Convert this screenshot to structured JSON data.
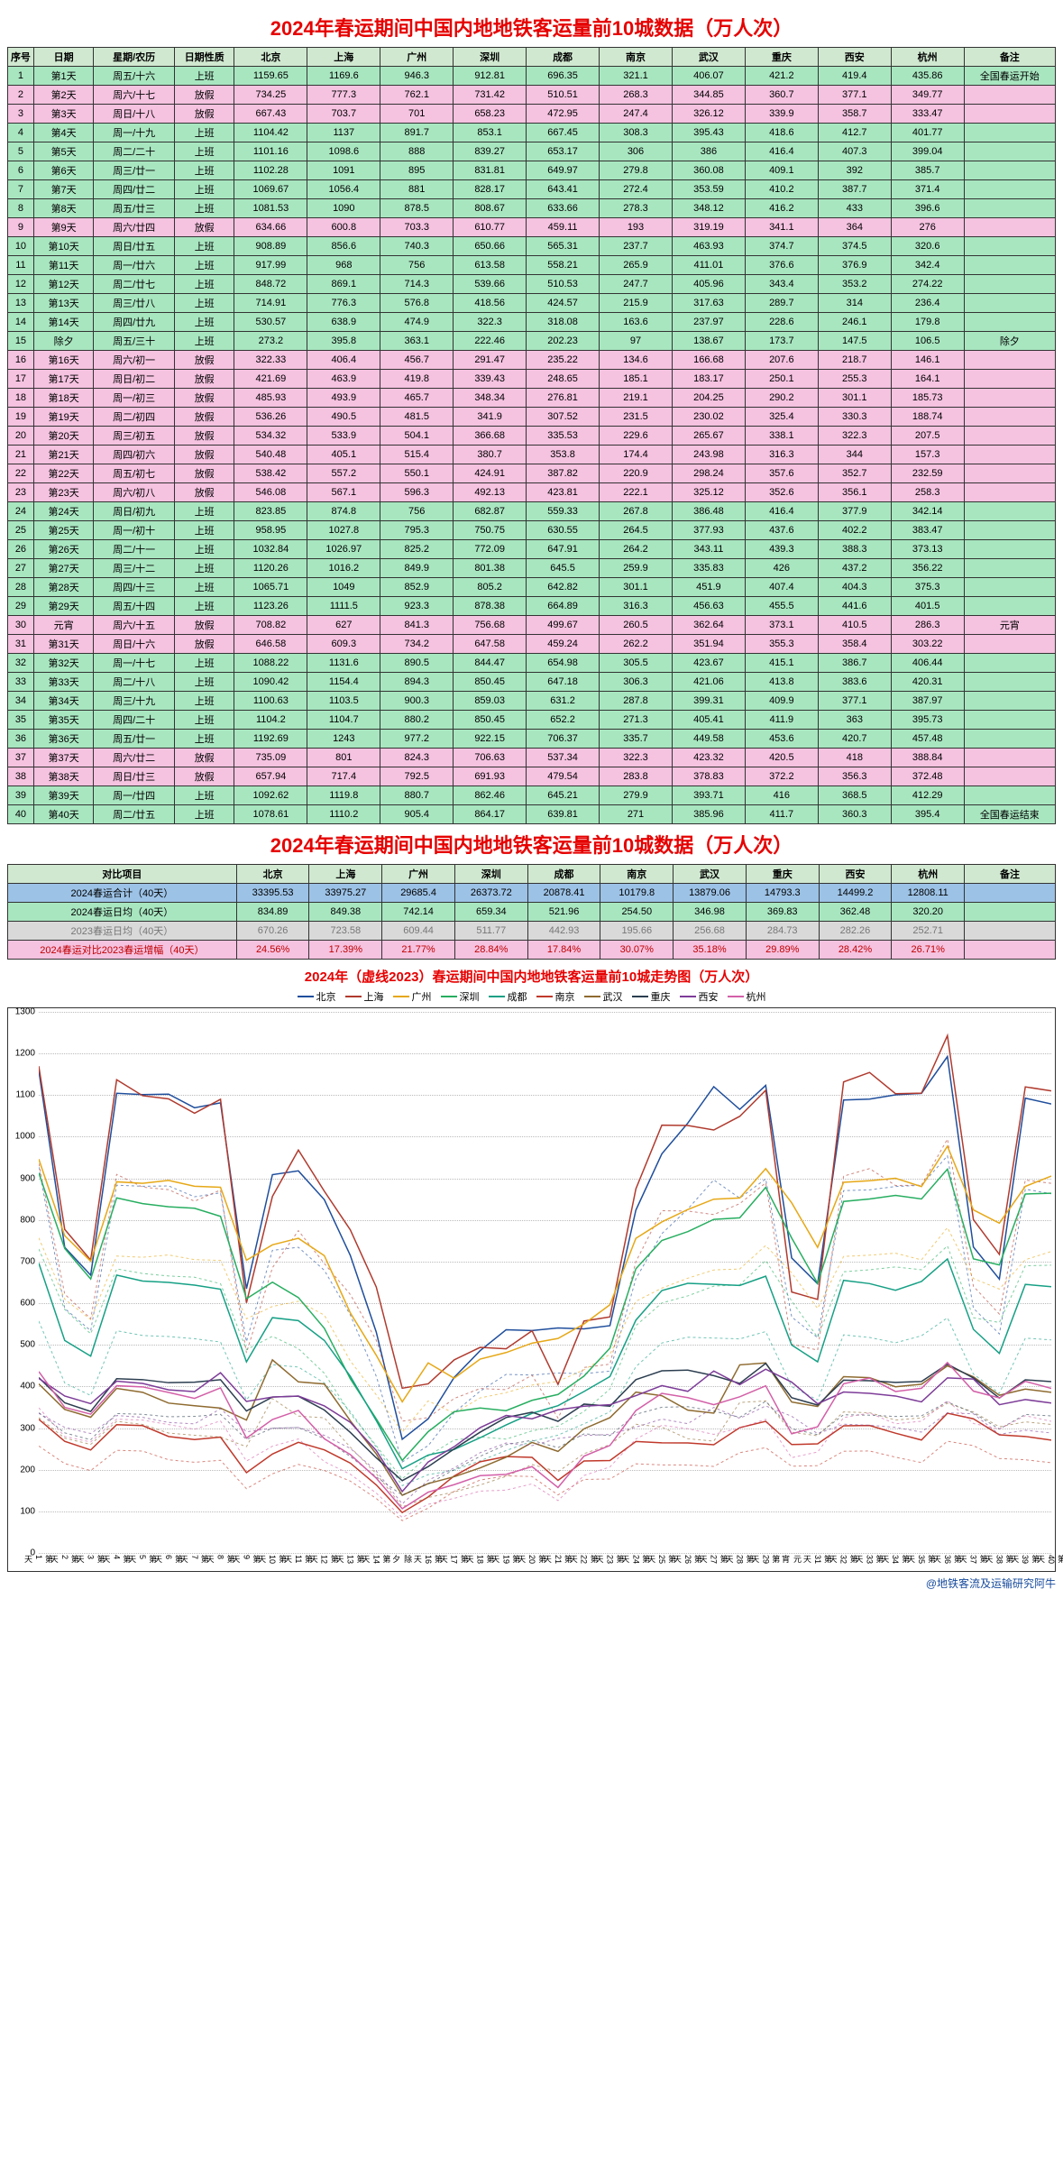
{
  "title_main": "2024年春运期间中国内地地铁客运量前10城数据（万人次）",
  "headers": [
    "序号",
    "日期",
    "星期/农历",
    "日期性质",
    "北京",
    "上海",
    "广州",
    "深圳",
    "成都",
    "南京",
    "武汉",
    "重庆",
    "西安",
    "杭州",
    "备注"
  ],
  "cities": [
    "北京",
    "上海",
    "广州",
    "深圳",
    "成都",
    "南京",
    "武汉",
    "重庆",
    "西安",
    "杭州"
  ],
  "rows": [
    {
      "seq": 1,
      "day": "第1天",
      "week": "周五/十六",
      "type": "上班",
      "v": [
        1159.65,
        1169.6,
        946.3,
        912.81,
        696.35,
        321.1,
        406.07,
        421.2,
        419.4,
        435.86
      ],
      "note": "全国春运开始"
    },
    {
      "seq": 2,
      "day": "第2天",
      "week": "周六/十七",
      "type": "放假",
      "v": [
        734.25,
        777.3,
        762.1,
        731.42,
        510.51,
        268.3,
        344.85,
        360.7,
        377.1,
        349.77
      ],
      "note": ""
    },
    {
      "seq": 3,
      "day": "第3天",
      "week": "周日/十八",
      "type": "放假",
      "v": [
        667.43,
        703.7,
        701,
        658.23,
        472.95,
        247.4,
        326.12,
        339.9,
        358.7,
        333.47
      ],
      "note": ""
    },
    {
      "seq": 4,
      "day": "第4天",
      "week": "周一/十九",
      "type": "上班",
      "v": [
        1104.42,
        1137,
        891.7,
        853.1,
        667.45,
        308.3,
        395.43,
        418.6,
        412.7,
        401.77
      ],
      "note": ""
    },
    {
      "seq": 5,
      "day": "第5天",
      "week": "周二/二十",
      "type": "上班",
      "v": [
        1101.16,
        1098.6,
        888.0,
        839.27,
        653.17,
        306,
        386,
        416.4,
        407.3,
        399.04
      ],
      "note": ""
    },
    {
      "seq": 6,
      "day": "第6天",
      "week": "周三/廿一",
      "type": "上班",
      "v": [
        1102.28,
        1091,
        895,
        831.81,
        649.97,
        279.8,
        360.08,
        409.1,
        392,
        385.7
      ],
      "note": ""
    },
    {
      "seq": 7,
      "day": "第7天",
      "week": "周四/廿二",
      "type": "上班",
      "v": [
        1069.67,
        1056.4,
        881,
        828.17,
        643.41,
        272.4,
        353.59,
        410.2,
        387.7,
        371.4
      ],
      "note": ""
    },
    {
      "seq": 8,
      "day": "第8天",
      "week": "周五/廿三",
      "type": "上班",
      "v": [
        1081.53,
        1090,
        878.5,
        808.67,
        633.66,
        278.3,
        348.12,
        416.2,
        433,
        396.6
      ],
      "note": ""
    },
    {
      "seq": 9,
      "day": "第9天",
      "week": "周六/廿四",
      "type": "放假",
      "v": [
        634.66,
        600.8,
        703.3,
        610.77,
        459.11,
        193,
        319.19,
        341.1,
        364,
        276
      ],
      "note": ""
    },
    {
      "seq": 10,
      "day": "第10天",
      "week": "周日/廿五",
      "type": "上班",
      "v": [
        908.89,
        856.6,
        740.3,
        650.66,
        565.31,
        237.7,
        463.93,
        374.7,
        374.5,
        320.6
      ],
      "note": ""
    },
    {
      "seq": 11,
      "day": "第11天",
      "week": "周一/廿六",
      "type": "上班",
      "v": [
        917.99,
        968,
        756,
        613.58,
        558.21,
        265.9,
        411.01,
        376.6,
        376.9,
        342.4
      ],
      "note": ""
    },
    {
      "seq": 12,
      "day": "第12天",
      "week": "周二/廿七",
      "type": "上班",
      "v": [
        848.72,
        869.1,
        714.3,
        539.66,
        510.53,
        247.7,
        405.96,
        343.4,
        353.2,
        274.22
      ],
      "note": ""
    },
    {
      "seq": 13,
      "day": "第13天",
      "week": "周三/廿八",
      "type": "上班",
      "v": [
        714.91,
        776.3,
        576.8,
        418.56,
        424.57,
        215.9,
        317.63,
        289.7,
        314,
        236.4
      ],
      "note": ""
    },
    {
      "seq": 14,
      "day": "第14天",
      "week": "周四/廿九",
      "type": "上班",
      "v": [
        530.57,
        638.9,
        474.9,
        322.3,
        318.08,
        163.6,
        237.97,
        228.6,
        246.1,
        179.8
      ],
      "note": ""
    },
    {
      "seq": 15,
      "day": "除夕",
      "week": "周五/三十",
      "type": "上班",
      "v": [
        273.2,
        395.8,
        363.1,
        222.46,
        202.23,
        97,
        138.67,
        173.7,
        147.5,
        106.5
      ],
      "note": "除夕"
    },
    {
      "seq": 16,
      "day": "第16天",
      "week": "周六/初一",
      "type": "放假",
      "v": [
        322.33,
        406.4,
        456.7,
        291.47,
        235.22,
        134.6,
        166.68,
        207.6,
        218.7,
        146.1
      ],
      "note": ""
    },
    {
      "seq": 17,
      "day": "第17天",
      "week": "周日/初二",
      "type": "放假",
      "v": [
        421.69,
        463.9,
        419.8,
        339.43,
        248.65,
        185.1,
        183.17,
        250.1,
        255.3,
        164.1
      ],
      "note": ""
    },
    {
      "seq": 18,
      "day": "第18天",
      "week": "周一/初三",
      "type": "放假",
      "v": [
        485.93,
        493.9,
        465.7,
        348.34,
        276.81,
        219.1,
        204.25,
        290.2,
        301.1,
        185.73
      ],
      "note": ""
    },
    {
      "seq": 19,
      "day": "第19天",
      "week": "周二/初四",
      "type": "放假",
      "v": [
        536.26,
        490.5,
        481.5,
        341.9,
        307.52,
        231.5,
        230.02,
        325.4,
        330.3,
        188.74
      ],
      "note": ""
    },
    {
      "seq": 20,
      "day": "第20天",
      "week": "周三/初五",
      "type": "放假",
      "v": [
        534.32,
        533.9,
        504.1,
        366.68,
        335.53,
        229.6,
        265.67,
        338.1,
        322.3,
        207.5
      ],
      "note": ""
    },
    {
      "seq": 21,
      "day": "第21天",
      "week": "周四/初六",
      "type": "放假",
      "v": [
        540.48,
        405.1,
        515.4,
        380.7,
        353.8,
        174.4,
        243.98,
        316.3,
        344,
        157.3
      ],
      "note": ""
    },
    {
      "seq": 22,
      "day": "第22天",
      "week": "周五/初七",
      "type": "放假",
      "v": [
        538.42,
        557.2,
        550.1,
        424.91,
        387.82,
        220.9,
        298.24,
        357.6,
        352.7,
        232.59
      ],
      "note": ""
    },
    {
      "seq": 23,
      "day": "第23天",
      "week": "周六/初八",
      "type": "放假",
      "v": [
        546.08,
        567.1,
        596.3,
        492.13,
        423.81,
        222.1,
        325.12,
        352.6,
        356.1,
        258.3
      ],
      "note": ""
    },
    {
      "seq": 24,
      "day": "第24天",
      "week": "周日/初九",
      "type": "上班",
      "v": [
        823.85,
        874.8,
        756,
        682.87,
        559.33,
        267.8,
        386.48,
        416.4,
        377.9,
        342.14
      ],
      "note": ""
    },
    {
      "seq": 25,
      "day": "第25天",
      "week": "周一/初十",
      "type": "上班",
      "v": [
        958.95,
        1027.8,
        795.3,
        750.75,
        630.55,
        264.5,
        377.93,
        437.6,
        402.2,
        383.47
      ],
      "note": ""
    },
    {
      "seq": 26,
      "day": "第26天",
      "week": "周二/十一",
      "type": "上班",
      "v": [
        1032.84,
        1026.97,
        825.2,
        772.09,
        647.91,
        264.2,
        343.11,
        439.3,
        388.3,
        373.13
      ],
      "note": ""
    },
    {
      "seq": 27,
      "day": "第27天",
      "week": "周三/十二",
      "type": "上班",
      "v": [
        1120.26,
        1016.2,
        849.9,
        801.38,
        645.5,
        259.9,
        335.83,
        426,
        437.2,
        356.22
      ],
      "note": ""
    },
    {
      "seq": 28,
      "day": "第28天",
      "week": "周四/十三",
      "type": "上班",
      "v": [
        1065.71,
        1049,
        852.9,
        805.2,
        642.82,
        301.1,
        451.9,
        407.4,
        404.3,
        375.3
      ],
      "note": ""
    },
    {
      "seq": 29,
      "day": "第29天",
      "week": "周五/十四",
      "type": "上班",
      "v": [
        1123.26,
        1111.5,
        923.3,
        878.38,
        664.89,
        316.3,
        456.63,
        455.5,
        441.6,
        401.5
      ],
      "note": ""
    },
    {
      "seq": 30,
      "day": "元宵",
      "week": "周六/十五",
      "type": "放假",
      "v": [
        708.82,
        627,
        841.3,
        756.68,
        499.67,
        260.5,
        362.64,
        373.1,
        410.5,
        286.3
      ],
      "note": "元宵"
    },
    {
      "seq": 31,
      "day": "第31天",
      "week": "周日/十六",
      "type": "放假",
      "v": [
        646.58,
        609.3,
        734.2,
        647.58,
        459.24,
        262.2,
        351.94,
        355.3,
        358.4,
        303.22
      ],
      "note": ""
    },
    {
      "seq": 32,
      "day": "第32天",
      "week": "周一/十七",
      "type": "上班",
      "v": [
        1088.22,
        1131.6,
        890.5,
        844.47,
        654.98,
        305.5,
        423.67,
        415.1,
        386.7,
        406.44
      ],
      "note": ""
    },
    {
      "seq": 33,
      "day": "第33天",
      "week": "周二/十八",
      "type": "上班",
      "v": [
        1090.42,
        1154.4,
        894.3,
        850.45,
        647.18,
        306.3,
        421.06,
        413.8,
        383.6,
        420.31
      ],
      "note": ""
    },
    {
      "seq": 34,
      "day": "第34天",
      "week": "周三/十九",
      "type": "上班",
      "v": [
        1100.63,
        1103.5,
        900.3,
        859.03,
        631.2,
        287.8,
        399.31,
        409.9,
        377.1,
        387.97
      ],
      "note": ""
    },
    {
      "seq": 35,
      "day": "第35天",
      "week": "周四/二十",
      "type": "上班",
      "v": [
        1104.2,
        1104.7,
        880.2,
        850.45,
        652.2,
        271.3,
        405.41,
        411.9,
        363,
        395.73
      ],
      "note": ""
    },
    {
      "seq": 36,
      "day": "第36天",
      "week": "周五/廿一",
      "type": "上班",
      "v": [
        1192.69,
        1243,
        977.2,
        922.15,
        706.37,
        335.7,
        449.58,
        453.6,
        420.7,
        457.48
      ],
      "note": ""
    },
    {
      "seq": 37,
      "day": "第37天",
      "week": "周六/廿二",
      "type": "放假",
      "v": [
        735.09,
        801,
        824.3,
        706.63,
        537.34,
        322.3,
        423.32,
        420.5,
        418,
        388.84
      ],
      "note": ""
    },
    {
      "seq": 38,
      "day": "第38天",
      "week": "周日/廿三",
      "type": "放假",
      "v": [
        657.94,
        717.4,
        792.5,
        691.93,
        479.54,
        283.8,
        378.83,
        372.2,
        356.3,
        372.48
      ],
      "note": ""
    },
    {
      "seq": 39,
      "day": "第39天",
      "week": "周一/廿四",
      "type": "上班",
      "v": [
        1092.62,
        1119.8,
        880.7,
        862.46,
        645.21,
        279.9,
        393.71,
        416,
        368.5,
        412.29
      ],
      "note": ""
    },
    {
      "seq": 40,
      "day": "第40天",
      "week": "周二/廿五",
      "type": "上班",
      "v": [
        1078.61,
        1110.2,
        905.4,
        864.17,
        639.81,
        271,
        385.96,
        411.7,
        360.3,
        395.4
      ],
      "note": "全国春运结束"
    }
  ],
  "summary_header": "对比项目",
  "summary": [
    {
      "label": "2024春运合计（40天）",
      "v": [
        "33395.53",
        "33975.27",
        "29685.4",
        "26373.72",
        "20878.41",
        "10179.8",
        "13879.06",
        "14793.3",
        "14499.2",
        "12808.11"
      ],
      "cls": "sum-row-1"
    },
    {
      "label": "2024春运日均（40天）",
      "v": [
        "834.89",
        "849.38",
        "742.14",
        "659.34",
        "521.96",
        "254.50",
        "346.98",
        "369.83",
        "362.48",
        "320.20"
      ],
      "cls": "sum-row-2"
    },
    {
      "label": "2023春运日均（40天）",
      "v": [
        "670.26",
        "723.58",
        "609.44",
        "511.77",
        "442.93",
        "195.66",
        "256.68",
        "284.73",
        "282.26",
        "252.71"
      ],
      "cls": "sum-row-3"
    },
    {
      "label": "2024春运对比2023春运增幅（40天）",
      "v": [
        "24.56%",
        "17.39%",
        "21.77%",
        "28.84%",
        "17.84%",
        "30.07%",
        "35.18%",
        "29.89%",
        "28.42%",
        "26.71%"
      ],
      "cls": "sum-row-4"
    }
  ],
  "chart": {
    "title": "2024年（虚线2023）春运期间中国内地地铁客运量前10城走势图（万人次）",
    "ymin": 0,
    "ymax": 1300,
    "ystep": 100,
    "colors": {
      "北京": "#1f4e9c",
      "上海": "#b03a2e",
      "广州": "#e6a817",
      "深圳": "#27ae60",
      "成都": "#16a085",
      "南京": "#c0392b",
      "武汉": "#8e6a2f",
      "重庆": "#2c3e50",
      "西安": "#7d3c98",
      "杭州": "#d35fa8"
    },
    "xlabels": [
      "第1天",
      "第2天",
      "第3天",
      "第4天",
      "第5天",
      "第6天",
      "第7天",
      "第8天",
      "第9天",
      "第10天",
      "第11天",
      "第12天",
      "第13天",
      "第14天",
      "除夕",
      "第16天",
      "第17天",
      "第18天",
      "第19天",
      "第20天",
      "第21天",
      "第22天",
      "第23天",
      "第24天",
      "第25天",
      "第26天",
      "第27天",
      "第28天",
      "第29天",
      "元宵",
      "第31天",
      "第32天",
      "第33天",
      "第34天",
      "第35天",
      "第36天",
      "第37天",
      "第38天",
      "第39天",
      "第40天"
    ]
  },
  "credit": "@地铁客流及运输研究阿牛"
}
